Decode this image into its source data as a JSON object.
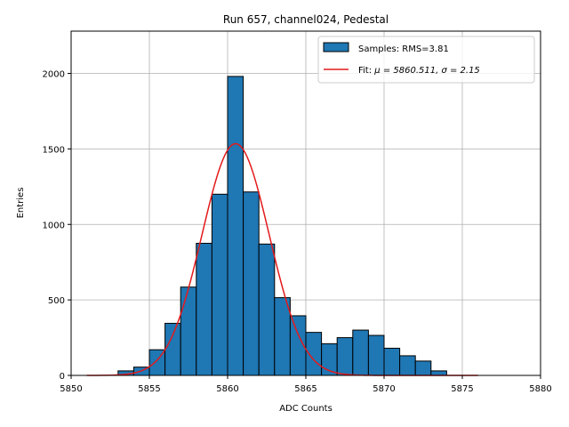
{
  "chart_data": {
    "type": "bar",
    "title": "Run 657, channel024, Pedestal",
    "xlabel": "ADC Counts",
    "ylabel": "Entries",
    "xlim": [
      5850,
      5880
    ],
    "ylim": [
      0,
      2280
    ],
    "xticks": [
      5850,
      5855,
      5860,
      5865,
      5870,
      5875,
      5880
    ],
    "yticks": [
      0,
      500,
      1000,
      1500,
      2000
    ],
    "grid": true,
    "legend_position": "top-right",
    "colors": {
      "bar_fill": "#1f77b4",
      "bar_edge": "#000000",
      "fit_line": "#e31a1c",
      "grid": "#b0b0b0"
    },
    "histogram": {
      "name": "Samples: RMS=3.81",
      "bin_width": 1,
      "bin_lefts": [
        5853,
        5854,
        5855,
        5856,
        5857,
        5858,
        5859,
        5860,
        5861,
        5862,
        5863,
        5864,
        5865,
        5866,
        5867,
        5868,
        5869,
        5870,
        5871,
        5872,
        5873
      ],
      "counts": [
        30,
        55,
        170,
        345,
        585,
        875,
        1200,
        1980,
        1215,
        870,
        515,
        395,
        285,
        210,
        250,
        300,
        265,
        180,
        130,
        95,
        30
      ]
    },
    "fit": {
      "name_prefix": "Fit: ",
      "name_math": "μ = 5860.511, σ = 2.15",
      "mu": 5860.511,
      "sigma": 2.15,
      "amplitude": 1535,
      "x_range": [
        5851,
        5876
      ]
    }
  }
}
